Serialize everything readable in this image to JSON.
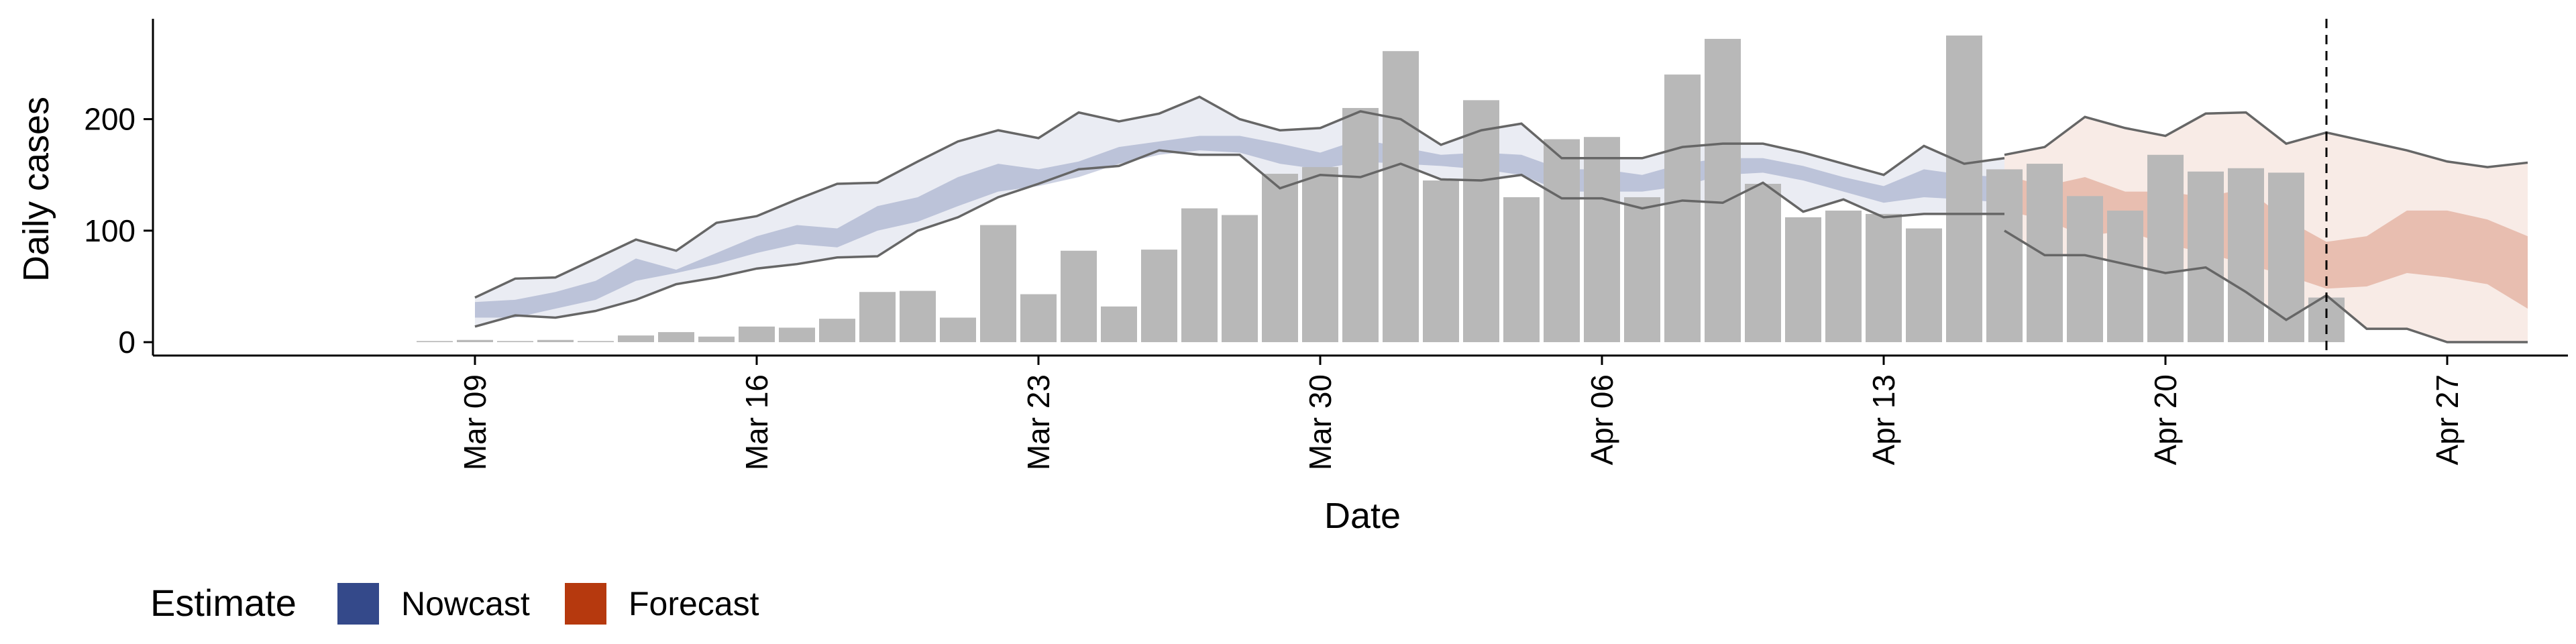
{
  "chart_data": {
    "type": "bar",
    "xlabel": "Date",
    "ylabel": "Daily cases",
    "x_ticks": [
      "Mar 09",
      "Mar 16",
      "Mar 23",
      "Mar 30",
      "Apr 06",
      "Apr 13",
      "Apr 20",
      "Apr 27"
    ],
    "y_ticks": [
      0,
      100,
      200
    ],
    "ylim": [
      -12,
      290
    ],
    "xlim": [
      "2020-03-01",
      "2020-04-30"
    ],
    "grid": false,
    "legend": {
      "title": "Estimate",
      "position": "bottom-left",
      "entries": [
        "Nowcast",
        "Forecast"
      ]
    },
    "colors": {
      "bars": "#b8b8b8",
      "nowcast": "#34498a",
      "forecast": "#b6390e",
      "outline": "#666666"
    },
    "vline": {
      "x": "2020-04-24",
      "style": "dashed"
    },
    "bars": {
      "x": [
        "2020-03-08",
        "2020-03-09",
        "2020-03-10",
        "2020-03-11",
        "2020-03-12",
        "2020-03-13",
        "2020-03-14",
        "2020-03-15",
        "2020-03-16",
        "2020-03-17",
        "2020-03-18",
        "2020-03-19",
        "2020-03-20",
        "2020-03-21",
        "2020-03-22",
        "2020-03-23",
        "2020-03-24",
        "2020-03-25",
        "2020-03-26",
        "2020-03-27",
        "2020-03-28",
        "2020-03-29",
        "2020-03-30",
        "2020-03-31",
        "2020-04-01",
        "2020-04-02",
        "2020-04-03",
        "2020-04-04",
        "2020-04-05",
        "2020-04-06",
        "2020-04-07",
        "2020-04-08",
        "2020-04-09",
        "2020-04-10",
        "2020-04-11",
        "2020-04-12",
        "2020-04-13",
        "2020-04-14",
        "2020-04-15",
        "2020-04-16",
        "2020-04-17",
        "2020-04-18",
        "2020-04-19",
        "2020-04-20",
        "2020-04-21",
        "2020-04-22",
        "2020-04-23",
        "2020-04-24"
      ],
      "values": [
        1,
        2,
        1,
        2,
        1,
        6,
        9,
        5,
        14,
        13,
        21,
        45,
        46,
        22,
        105,
        43,
        82,
        32,
        83,
        120,
        114,
        151,
        157,
        210,
        261,
        145,
        217,
        130,
        182,
        184,
        130,
        240,
        272,
        142,
        112,
        118,
        115,
        102,
        275,
        155,
        160,
        131,
        118,
        168,
        153,
        156,
        152,
        40
      ]
    },
    "series": [
      {
        "name": "Nowcast",
        "x": [
          "2020-03-09",
          "2020-03-10",
          "2020-03-11",
          "2020-03-12",
          "2020-03-13",
          "2020-03-14",
          "2020-03-15",
          "2020-03-16",
          "2020-03-17",
          "2020-03-18",
          "2020-03-19",
          "2020-03-20",
          "2020-03-21",
          "2020-03-22",
          "2020-03-23",
          "2020-03-24",
          "2020-03-25",
          "2020-03-26",
          "2020-03-27",
          "2020-03-28",
          "2020-03-29",
          "2020-03-30",
          "2020-03-31",
          "2020-04-01",
          "2020-04-02",
          "2020-04-03",
          "2020-04-04",
          "2020-04-05",
          "2020-04-06",
          "2020-04-07",
          "2020-04-08",
          "2020-04-09",
          "2020-04-10",
          "2020-04-11",
          "2020-04-12",
          "2020-04-13",
          "2020-04-14",
          "2020-04-15",
          "2020-04-16"
        ],
        "upper90": [
          40,
          57,
          58,
          75,
          92,
          82,
          107,
          113,
          128,
          142,
          143,
          162,
          180,
          190,
          183,
          206,
          198,
          205,
          220,
          200,
          190,
          192,
          207,
          200,
          177,
          190,
          196,
          165,
          165,
          165,
          175,
          178,
          178,
          170,
          160,
          150,
          176,
          160,
          165
        ],
        "upper50": [
          36,
          38,
          45,
          55,
          75,
          65,
          80,
          95,
          105,
          102,
          122,
          130,
          148,
          160,
          155,
          162,
          175,
          180,
          185,
          185,
          178,
          170,
          182,
          175,
          168,
          170,
          168,
          155,
          155,
          150,
          160,
          165,
          165,
          158,
          148,
          140,
          155,
          150,
          148
        ],
        "lower50": [
          22,
          22,
          30,
          38,
          55,
          62,
          70,
          80,
          88,
          85,
          100,
          108,
          122,
          135,
          140,
          148,
          160,
          168,
          172,
          170,
          160,
          155,
          162,
          160,
          158,
          155,
          150,
          135,
          135,
          135,
          140,
          150,
          152,
          145,
          135,
          125,
          130,
          128,
          125
        ],
        "lower90": [
          14,
          24,
          22,
          28,
          38,
          52,
          58,
          66,
          70,
          76,
          77,
          100,
          112,
          130,
          142,
          155,
          158,
          172,
          168,
          168,
          138,
          150,
          148,
          160,
          146,
          145,
          150,
          129,
          129,
          120,
          127,
          125,
          143,
          117,
          128,
          112,
          115,
          115,
          115
        ]
      },
      {
        "name": "Forecast",
        "x": [
          "2020-04-16",
          "2020-04-17",
          "2020-04-18",
          "2020-04-19",
          "2020-04-20",
          "2020-04-21",
          "2020-04-22",
          "2020-04-23",
          "2020-04-24",
          "2020-04-25",
          "2020-04-26",
          "2020-04-27",
          "2020-04-28",
          "2020-04-29"
        ],
        "upper90": [
          168,
          175,
          202,
          192,
          185,
          205,
          206,
          178,
          188,
          180,
          172,
          162,
          157,
          161
        ],
        "upper50": [
          150,
          140,
          148,
          135,
          135,
          130,
          138,
          110,
          90,
          95,
          118,
          118,
          110,
          95
        ],
        "lower50": [
          118,
          110,
          95,
          100,
          88,
          80,
          70,
          60,
          48,
          50,
          62,
          58,
          52,
          30
        ],
        "lower90": [
          100,
          78,
          78,
          70,
          62,
          67,
          45,
          20,
          42,
          12,
          12,
          0,
          0,
          0
        ]
      }
    ]
  }
}
